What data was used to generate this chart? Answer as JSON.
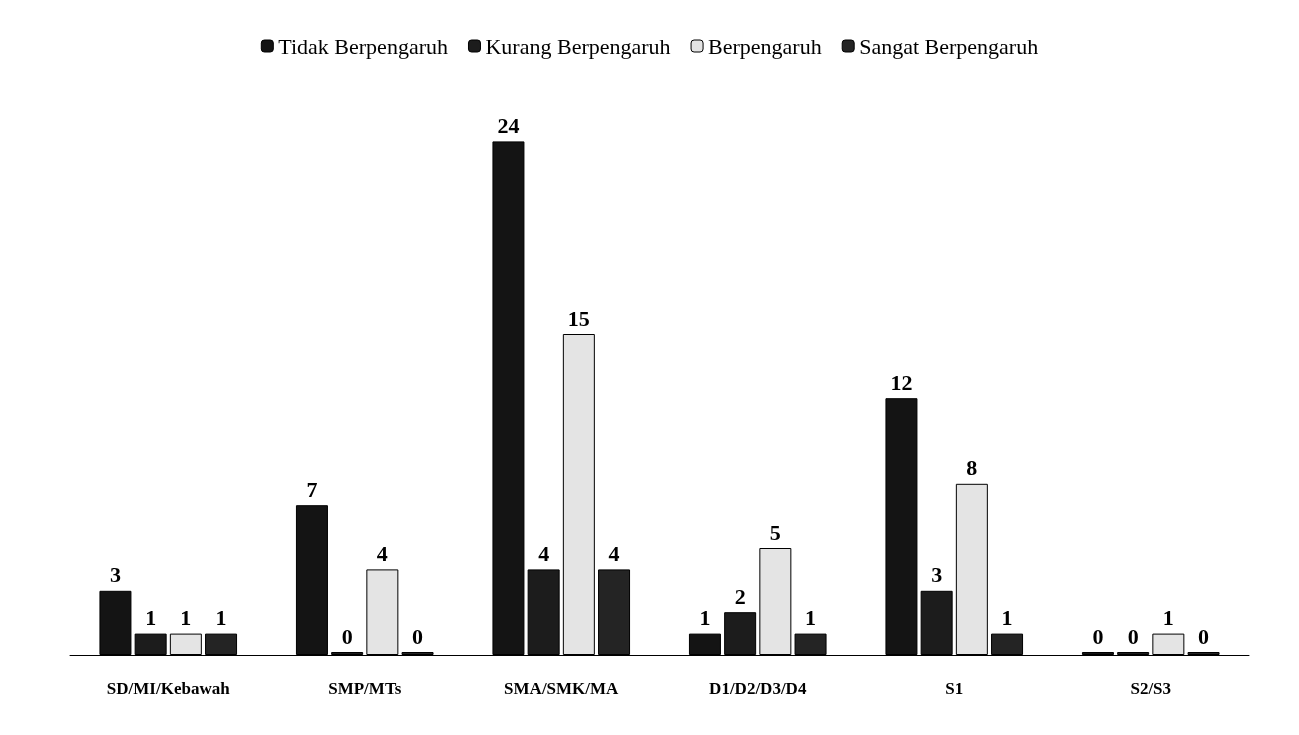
{
  "chart_data": {
    "type": "bar",
    "categories": [
      "SD/MI/Kebawah",
      "SMP/MTs",
      "SMA/SMK/MA",
      "D1/D2/D3/D4",
      "S1",
      "S2/S3"
    ],
    "series": [
      {
        "name": "Tidak Berpengaruh",
        "color": "#141414",
        "values": [
          3,
          7,
          24,
          1,
          12,
          0
        ]
      },
      {
        "name": "Kurang Berpengaruh",
        "color": "#1c1c1c",
        "values": [
          1,
          0,
          4,
          2,
          3,
          0
        ]
      },
      {
        "name": "Berpengaruh",
        "color": "#e4e4e4",
        "values": [
          1,
          4,
          15,
          5,
          8,
          1
        ]
      },
      {
        "name": "Sangat Berpengaruh",
        "color": "#242424",
        "values": [
          1,
          0,
          4,
          1,
          1,
          0
        ]
      }
    ],
    "data_labels": true,
    "legend": "top"
  }
}
